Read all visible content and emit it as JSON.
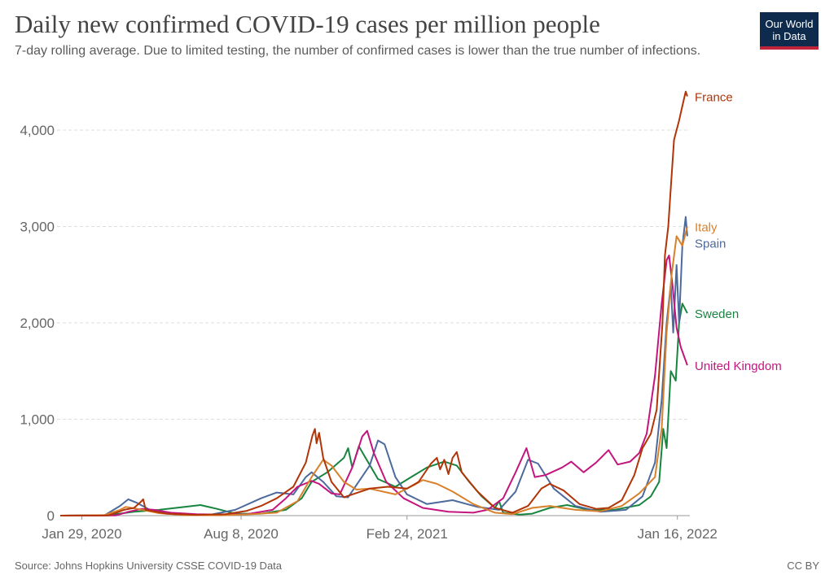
{
  "header": {
    "title": "Daily new confirmed COVID-19 cases per million people",
    "subtitle": "7-day rolling average. Due to limited testing, the number of confirmed cases is lower than the true number of infections."
  },
  "logo": {
    "line1": "Our World",
    "line2": "in Data"
  },
  "footer": {
    "source": "Source: Johns Hopkins University CSSE COVID-19 Data",
    "license": "CC BY"
  },
  "chart_data": {
    "type": "line",
    "title": "Daily new confirmed COVID-19 cases per million people",
    "subtitle": "7-day rolling average. Due to limited testing, the number of confirmed cases is lower than the true number of infections.",
    "xlabel": "",
    "ylabel": "",
    "x_ticks": [
      "Jan 29, 2020",
      "Aug 8, 2020",
      "Feb 24, 2021",
      "Jan 16, 2022"
    ],
    "xlim": [
      "2020-01-03",
      "2022-01-31"
    ],
    "ylim": [
      0,
      4400
    ],
    "y_ticks": [
      0,
      1000,
      2000,
      3000,
      4000
    ],
    "y_tick_labels": [
      "0",
      "1,000",
      "2,000",
      "3,000",
      "4,000"
    ],
    "grid": "horizontal dashed",
    "legend": "line-end labels (right)",
    "series": [
      {
        "name": "France",
        "color": "#b13507",
        "points": [
          [
            "2020-01-03",
            0
          ],
          [
            "2020-03-01",
            2
          ],
          [
            "2020-03-20",
            60
          ],
          [
            "2020-04-01",
            80
          ],
          [
            "2020-04-10",
            150
          ],
          [
            "2020-04-12",
            170
          ],
          [
            "2020-04-15",
            60
          ],
          [
            "2020-05-10",
            20
          ],
          [
            "2020-06-15",
            8
          ],
          [
            "2020-07-20",
            15
          ],
          [
            "2020-08-15",
            50
          ],
          [
            "2020-09-01",
            100
          ],
          [
            "2020-09-20",
            180
          ],
          [
            "2020-10-10",
            300
          ],
          [
            "2020-10-25",
            550
          ],
          [
            "2020-11-02",
            830
          ],
          [
            "2020-11-05",
            900
          ],
          [
            "2020-11-07",
            750
          ],
          [
            "2020-11-10",
            860
          ],
          [
            "2020-11-15",
            600
          ],
          [
            "2020-11-25",
            350
          ],
          [
            "2020-12-10",
            190
          ],
          [
            "2020-12-20",
            220
          ],
          [
            "2021-01-10",
            280
          ],
          [
            "2021-02-01",
            300
          ],
          [
            "2021-02-24",
            280
          ],
          [
            "2021-03-10",
            350
          ],
          [
            "2021-03-25",
            540
          ],
          [
            "2021-04-01",
            600
          ],
          [
            "2021-04-05",
            480
          ],
          [
            "2021-04-10",
            580
          ],
          [
            "2021-04-15",
            430
          ],
          [
            "2021-04-20",
            600
          ],
          [
            "2021-04-25",
            660
          ],
          [
            "2021-05-01",
            450
          ],
          [
            "2021-05-20",
            250
          ],
          [
            "2021-06-10",
            80
          ],
          [
            "2021-07-01",
            30
          ],
          [
            "2021-07-20",
            100
          ],
          [
            "2021-08-05",
            280
          ],
          [
            "2021-08-15",
            330
          ],
          [
            "2021-09-01",
            260
          ],
          [
            "2021-09-20",
            120
          ],
          [
            "2021-10-10",
            70
          ],
          [
            "2021-10-25",
            80
          ],
          [
            "2021-11-10",
            160
          ],
          [
            "2021-11-25",
            420
          ],
          [
            "2021-12-05",
            700
          ],
          [
            "2021-12-15",
            850
          ],
          [
            "2021-12-22",
            1100
          ],
          [
            "2021-12-29",
            2000
          ],
          [
            "2022-01-01",
            2700
          ],
          [
            "2022-01-05",
            3000
          ],
          [
            "2022-01-08",
            3400
          ],
          [
            "2022-01-12",
            3900
          ],
          [
            "2022-01-15",
            4000
          ],
          [
            "2022-01-18",
            4100
          ],
          [
            "2022-01-22",
            4250
          ],
          [
            "2022-01-26",
            4400
          ],
          [
            "2022-01-28",
            4350
          ]
        ]
      },
      {
        "name": "Italy",
        "color": "#d9802b",
        "points": [
          [
            "2020-01-03",
            0
          ],
          [
            "2020-02-25",
            5
          ],
          [
            "2020-03-15",
            60
          ],
          [
            "2020-03-22",
            90
          ],
          [
            "2020-04-05",
            70
          ],
          [
            "2020-05-01",
            25
          ],
          [
            "2020-06-01",
            5
          ],
          [
            "2020-07-15",
            3
          ],
          [
            "2020-08-20",
            15
          ],
          [
            "2020-09-20",
            30
          ],
          [
            "2020-10-15",
            150
          ],
          [
            "2020-11-01",
            400
          ],
          [
            "2020-11-15",
            580
          ],
          [
            "2020-11-25",
            520
          ],
          [
            "2020-12-10",
            350
          ],
          [
            "2020-12-25",
            270
          ],
          [
            "2021-01-10",
            280
          ],
          [
            "2021-02-10",
            220
          ],
          [
            "2021-03-05",
            320
          ],
          [
            "2021-03-15",
            370
          ],
          [
            "2021-04-01",
            330
          ],
          [
            "2021-04-20",
            250
          ],
          [
            "2021-05-15",
            120
          ],
          [
            "2021-06-10",
            30
          ],
          [
            "2021-07-01",
            15
          ],
          [
            "2021-07-25",
            80
          ],
          [
            "2021-08-15",
            100
          ],
          [
            "2021-09-15",
            60
          ],
          [
            "2021-10-15",
            45
          ],
          [
            "2021-11-10",
            100
          ],
          [
            "2021-12-01",
            230
          ],
          [
            "2021-12-20",
            400
          ],
          [
            "2021-12-28",
            900
          ],
          [
            "2022-01-03",
            1900
          ],
          [
            "2022-01-09",
            2500
          ],
          [
            "2022-01-15",
            2900
          ],
          [
            "2022-01-22",
            2800
          ],
          [
            "2022-01-28",
            3000
          ]
        ]
      },
      {
        "name": "Spain",
        "color": "#4c6a9c",
        "points": [
          [
            "2020-01-03",
            0
          ],
          [
            "2020-02-25",
            2
          ],
          [
            "2020-03-15",
            100
          ],
          [
            "2020-03-25",
            170
          ],
          [
            "2020-04-05",
            130
          ],
          [
            "2020-04-20",
            60
          ],
          [
            "2020-05-20",
            15
          ],
          [
            "2020-07-01",
            8
          ],
          [
            "2020-08-01",
            60
          ],
          [
            "2020-09-01",
            180
          ],
          [
            "2020-09-20",
            240
          ],
          [
            "2020-10-10",
            220
          ],
          [
            "2020-10-25",
            400
          ],
          [
            "2020-11-01",
            450
          ],
          [
            "2020-11-15",
            350
          ],
          [
            "2020-12-01",
            200
          ],
          [
            "2020-12-15",
            190
          ],
          [
            "2021-01-10",
            520
          ],
          [
            "2021-01-20",
            780
          ],
          [
            "2021-01-28",
            740
          ],
          [
            "2021-02-10",
            400
          ],
          [
            "2021-02-24",
            220
          ],
          [
            "2021-03-20",
            120
          ],
          [
            "2021-04-20",
            160
          ],
          [
            "2021-05-20",
            90
          ],
          [
            "2021-06-15",
            60
          ],
          [
            "2021-07-05",
            250
          ],
          [
            "2021-07-20",
            580
          ],
          [
            "2021-08-01",
            540
          ],
          [
            "2021-08-20",
            280
          ],
          [
            "2021-09-15",
            100
          ],
          [
            "2021-10-15",
            40
          ],
          [
            "2021-11-15",
            60
          ],
          [
            "2021-12-05",
            200
          ],
          [
            "2021-12-20",
            550
          ],
          [
            "2021-12-28",
            1200
          ],
          [
            "2022-01-03",
            2000
          ],
          [
            "2022-01-08",
            2400
          ],
          [
            "2022-01-11",
            1900
          ],
          [
            "2022-01-15",
            2600
          ],
          [
            "2022-01-18",
            2000
          ],
          [
            "2022-01-22",
            2800
          ],
          [
            "2022-01-26",
            3100
          ],
          [
            "2022-01-28",
            2900
          ]
        ]
      },
      {
        "name": "Sweden",
        "color": "#18853f",
        "points": [
          [
            "2020-01-03",
            0
          ],
          [
            "2020-03-01",
            5
          ],
          [
            "2020-04-01",
            40
          ],
          [
            "2020-05-01",
            60
          ],
          [
            "2020-06-01",
            90
          ],
          [
            "2020-06-20",
            110
          ],
          [
            "2020-07-10",
            70
          ],
          [
            "2020-08-01",
            20
          ],
          [
            "2020-09-01",
            20
          ],
          [
            "2020-10-01",
            60
          ],
          [
            "2020-10-20",
            180
          ],
          [
            "2020-11-01",
            350
          ],
          [
            "2020-11-20",
            450
          ],
          [
            "2020-12-10",
            600
          ],
          [
            "2020-12-15",
            700
          ],
          [
            "2020-12-20",
            500
          ],
          [
            "2020-12-28",
            720
          ],
          [
            "2021-01-05",
            600
          ],
          [
            "2021-01-20",
            380
          ],
          [
            "2021-02-10",
            300
          ],
          [
            "2021-03-01",
            400
          ],
          [
            "2021-03-20",
            500
          ],
          [
            "2021-04-10",
            560
          ],
          [
            "2021-04-25",
            520
          ],
          [
            "2021-05-10",
            350
          ],
          [
            "2021-05-25",
            200
          ],
          [
            "2021-06-10",
            80
          ],
          [
            "2021-06-15",
            150
          ],
          [
            "2021-06-20",
            30
          ],
          [
            "2021-07-10",
            10
          ],
          [
            "2021-07-25",
            20
          ],
          [
            "2021-08-15",
            80
          ],
          [
            "2021-09-05",
            110
          ],
          [
            "2021-10-01",
            60
          ],
          [
            "2021-11-01",
            60
          ],
          [
            "2021-12-01",
            110
          ],
          [
            "2021-12-15",
            200
          ],
          [
            "2021-12-25",
            350
          ],
          [
            "2021-12-30",
            900
          ],
          [
            "2022-01-03",
            700
          ],
          [
            "2022-01-08",
            1500
          ],
          [
            "2022-01-14",
            1400
          ],
          [
            "2022-01-18",
            2000
          ],
          [
            "2022-01-22",
            2200
          ],
          [
            "2022-01-28",
            2100
          ]
        ]
      },
      {
        "name": "United Kingdom",
        "color": "#c4157e",
        "points": [
          [
            "2020-01-03",
            0
          ],
          [
            "2020-03-10",
            2
          ],
          [
            "2020-03-25",
            40
          ],
          [
            "2020-04-10",
            70
          ],
          [
            "2020-04-25",
            60
          ],
          [
            "2020-05-15",
            30
          ],
          [
            "2020-06-15",
            15
          ],
          [
            "2020-07-15",
            10
          ],
          [
            "2020-08-15",
            15
          ],
          [
            "2020-09-15",
            60
          ],
          [
            "2020-10-01",
            180
          ],
          [
            "2020-10-15",
            300
          ],
          [
            "2020-11-01",
            360
          ],
          [
            "2020-11-10",
            330
          ],
          [
            "2020-11-25",
            230
          ],
          [
            "2020-12-05",
            220
          ],
          [
            "2020-12-20",
            500
          ],
          [
            "2021-01-01",
            820
          ],
          [
            "2021-01-07",
            880
          ],
          [
            "2021-01-15",
            650
          ],
          [
            "2021-01-30",
            350
          ],
          [
            "2021-02-20",
            180
          ],
          [
            "2021-03-15",
            80
          ],
          [
            "2021-04-15",
            40
          ],
          [
            "2021-05-15",
            30
          ],
          [
            "2021-06-01",
            60
          ],
          [
            "2021-06-20",
            180
          ],
          [
            "2021-07-05",
            450
          ],
          [
            "2021-07-18",
            700
          ],
          [
            "2021-07-28",
            400
          ],
          [
            "2021-08-10",
            420
          ],
          [
            "2021-08-30",
            500
          ],
          [
            "2021-09-10",
            560
          ],
          [
            "2021-09-25",
            450
          ],
          [
            "2021-10-10",
            550
          ],
          [
            "2021-10-25",
            680
          ],
          [
            "2021-11-05",
            530
          ],
          [
            "2021-11-20",
            560
          ],
          [
            "2021-12-01",
            650
          ],
          [
            "2021-12-10",
            850
          ],
          [
            "2021-12-20",
            1450
          ],
          [
            "2021-12-28",
            2200
          ],
          [
            "2022-01-03",
            2650
          ],
          [
            "2022-01-06",
            2700
          ],
          [
            "2022-01-10",
            2400
          ],
          [
            "2022-01-15",
            1950
          ],
          [
            "2022-01-20",
            1750
          ],
          [
            "2022-01-28",
            1560
          ]
        ]
      }
    ]
  }
}
